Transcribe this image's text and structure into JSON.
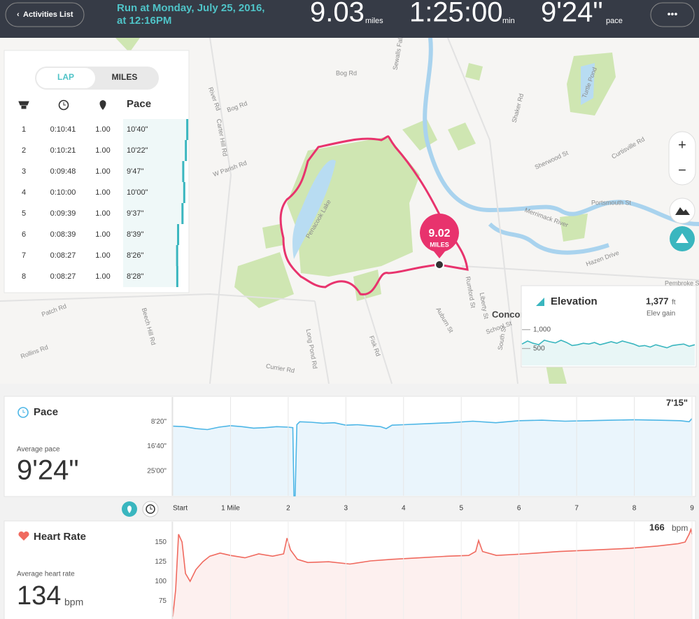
{
  "header": {
    "back_button": "Activities List",
    "title_line1": "Run at Monday, July 25, 2016,",
    "title_line2": "at 12:16PM",
    "stats": [
      {
        "value": "9.03",
        "unit": "miles"
      },
      {
        "value": "1:25:00",
        "unit": "min"
      },
      {
        "value": "9'24\"",
        "unit": "pace"
      }
    ],
    "menu": "•••"
  },
  "laps": {
    "tabs": [
      "LAP",
      "MILES"
    ],
    "pace_header": "Pace",
    "rows": [
      [
        "1",
        "0:10:41",
        "1.00",
        "10'40\""
      ],
      [
        "2",
        "0:10:21",
        "1.00",
        "10'22\""
      ],
      [
        "3",
        "0:09:48",
        "1.00",
        "9'47\""
      ],
      [
        "4",
        "0:10:00",
        "1.00",
        "10'00\""
      ],
      [
        "5",
        "0:09:39",
        "1.00",
        "9'37\""
      ],
      [
        "6",
        "0:08:39",
        "1.00",
        "8'39\""
      ],
      [
        "7",
        "0:08:27",
        "1.00",
        "8'26\""
      ],
      [
        "8",
        "0:08:27",
        "1.00",
        "8'28\""
      ]
    ]
  },
  "map": {
    "marker_value": "9.02",
    "marker_unit": "MILES",
    "controls": [
      "+",
      "−"
    ],
    "labels": [
      "Bog Rd",
      "Bog Rd",
      "River Rd",
      "Carter Hill Rd",
      "W Parish Rd",
      "Penacook Lake",
      "Sewalls Falls Rd",
      "Shaker Rd",
      "Sherwood St",
      "Curtisville Rd",
      "Portsmouth St",
      "Hazen Drive",
      "Pembroke St",
      "Turtle Pond",
      "Merrimack River",
      "Concord",
      "Auburn St",
      "School St",
      "South St",
      "Long Pond Rd",
      "Fisk Rd",
      "Currier Rd",
      "Beech Hill Rd",
      "Patch Rd",
      "Rollins Rd",
      "Liberty St",
      "Rumford St"
    ]
  },
  "elevation": {
    "title": "Elevation",
    "gain": "1,377",
    "gain_unit": "ft",
    "gain_label": "Elev gain",
    "ylim": [
      50,
      1200
    ],
    "yticks": [
      {
        "value": 1000,
        "label": "1,000"
      },
      500
    ],
    "values": [
      620,
      700,
      640,
      600,
      720,
      680,
      650,
      720,
      660,
      580,
      600,
      640,
      620,
      660,
      600,
      640,
      680,
      640,
      700,
      660,
      620,
      560,
      580,
      540,
      600,
      560,
      520,
      580,
      600,
      620,
      560,
      600
    ]
  },
  "pace_chart": {
    "type": "line",
    "title": "Pace",
    "average_label": "Average pace",
    "average": "9'24\"",
    "peak": "7'15\"",
    "inverted": true,
    "color": "#4db6e6",
    "fill": "#eaf5fc",
    "xlim": [
      0,
      9
    ],
    "xticks": [
      {
        "value": 0,
        "label": "Start"
      },
      {
        "value": 1,
        "label": "1 Mile"
      },
      2,
      3,
      4,
      5,
      6,
      7,
      8,
      9
    ],
    "ylim": [
      0,
      2000
    ],
    "yticks": [
      {
        "value": 500,
        "label": "8'20\""
      },
      {
        "value": 1000,
        "label": "16'40\""
      },
      {
        "value": 1500,
        "label": "25'00\""
      }
    ],
    "x": [
      0,
      0.2,
      0.4,
      0.6,
      0.8,
      1.0,
      1.2,
      1.4,
      1.6,
      1.8,
      2.0,
      2.08,
      2.1,
      2.12,
      2.15,
      2.2,
      2.4,
      2.6,
      2.8,
      3.0,
      3.2,
      3.4,
      3.6,
      3.7,
      3.8,
      4.0,
      4.4,
      4.8,
      5.2,
      5.6,
      6.0,
      6.4,
      6.8,
      7.2,
      7.6,
      8.0,
      8.4,
      8.8,
      8.95,
      9.0
    ],
    "values": [
      590,
      600,
      640,
      660,
      610,
      580,
      600,
      630,
      620,
      600,
      610,
      620,
      2000,
      2000,
      560,
      500,
      510,
      530,
      520,
      570,
      560,
      580,
      600,
      640,
      570,
      560,
      540,
      520,
      490,
      520,
      480,
      470,
      490,
      480,
      470,
      460,
      470,
      480,
      500,
      435
    ]
  },
  "heart_chart": {
    "type": "line",
    "title": "Heart Rate",
    "average_label": "Average heart rate",
    "average": 134,
    "unit": "bpm",
    "peak": 166,
    "color": "#f06a5f",
    "fill": "#fdf0ef",
    "xlim": [
      0,
      9
    ],
    "ylim": [
      52,
      176
    ],
    "yticks": [
      75,
      100,
      125,
      150
    ],
    "x": [
      0,
      0.05,
      0.1,
      0.16,
      0.22,
      0.3,
      0.4,
      0.52,
      0.64,
      0.82,
      1.0,
      1.25,
      1.49,
      1.73,
      1.92,
      1.98,
      2.04,
      2.16,
      2.34,
      2.7,
      3.07,
      3.43,
      3.79,
      4.28,
      4.76,
      5.13,
      5.25,
      5.3,
      5.37,
      5.61,
      6.1,
      6.7,
      7.3,
      7.92,
      8.4,
      8.76,
      8.88,
      8.95,
      8.98,
      9.0
    ],
    "values": [
      55,
      90,
      160,
      150,
      110,
      100,
      115,
      125,
      132,
      136,
      133,
      130,
      135,
      132,
      135,
      155,
      140,
      128,
      124,
      125,
      122,
      126,
      128,
      130,
      132,
      133,
      138,
      152,
      138,
      133,
      135,
      138,
      140,
      142,
      145,
      148,
      150,
      160,
      166,
      160
    ]
  }
}
